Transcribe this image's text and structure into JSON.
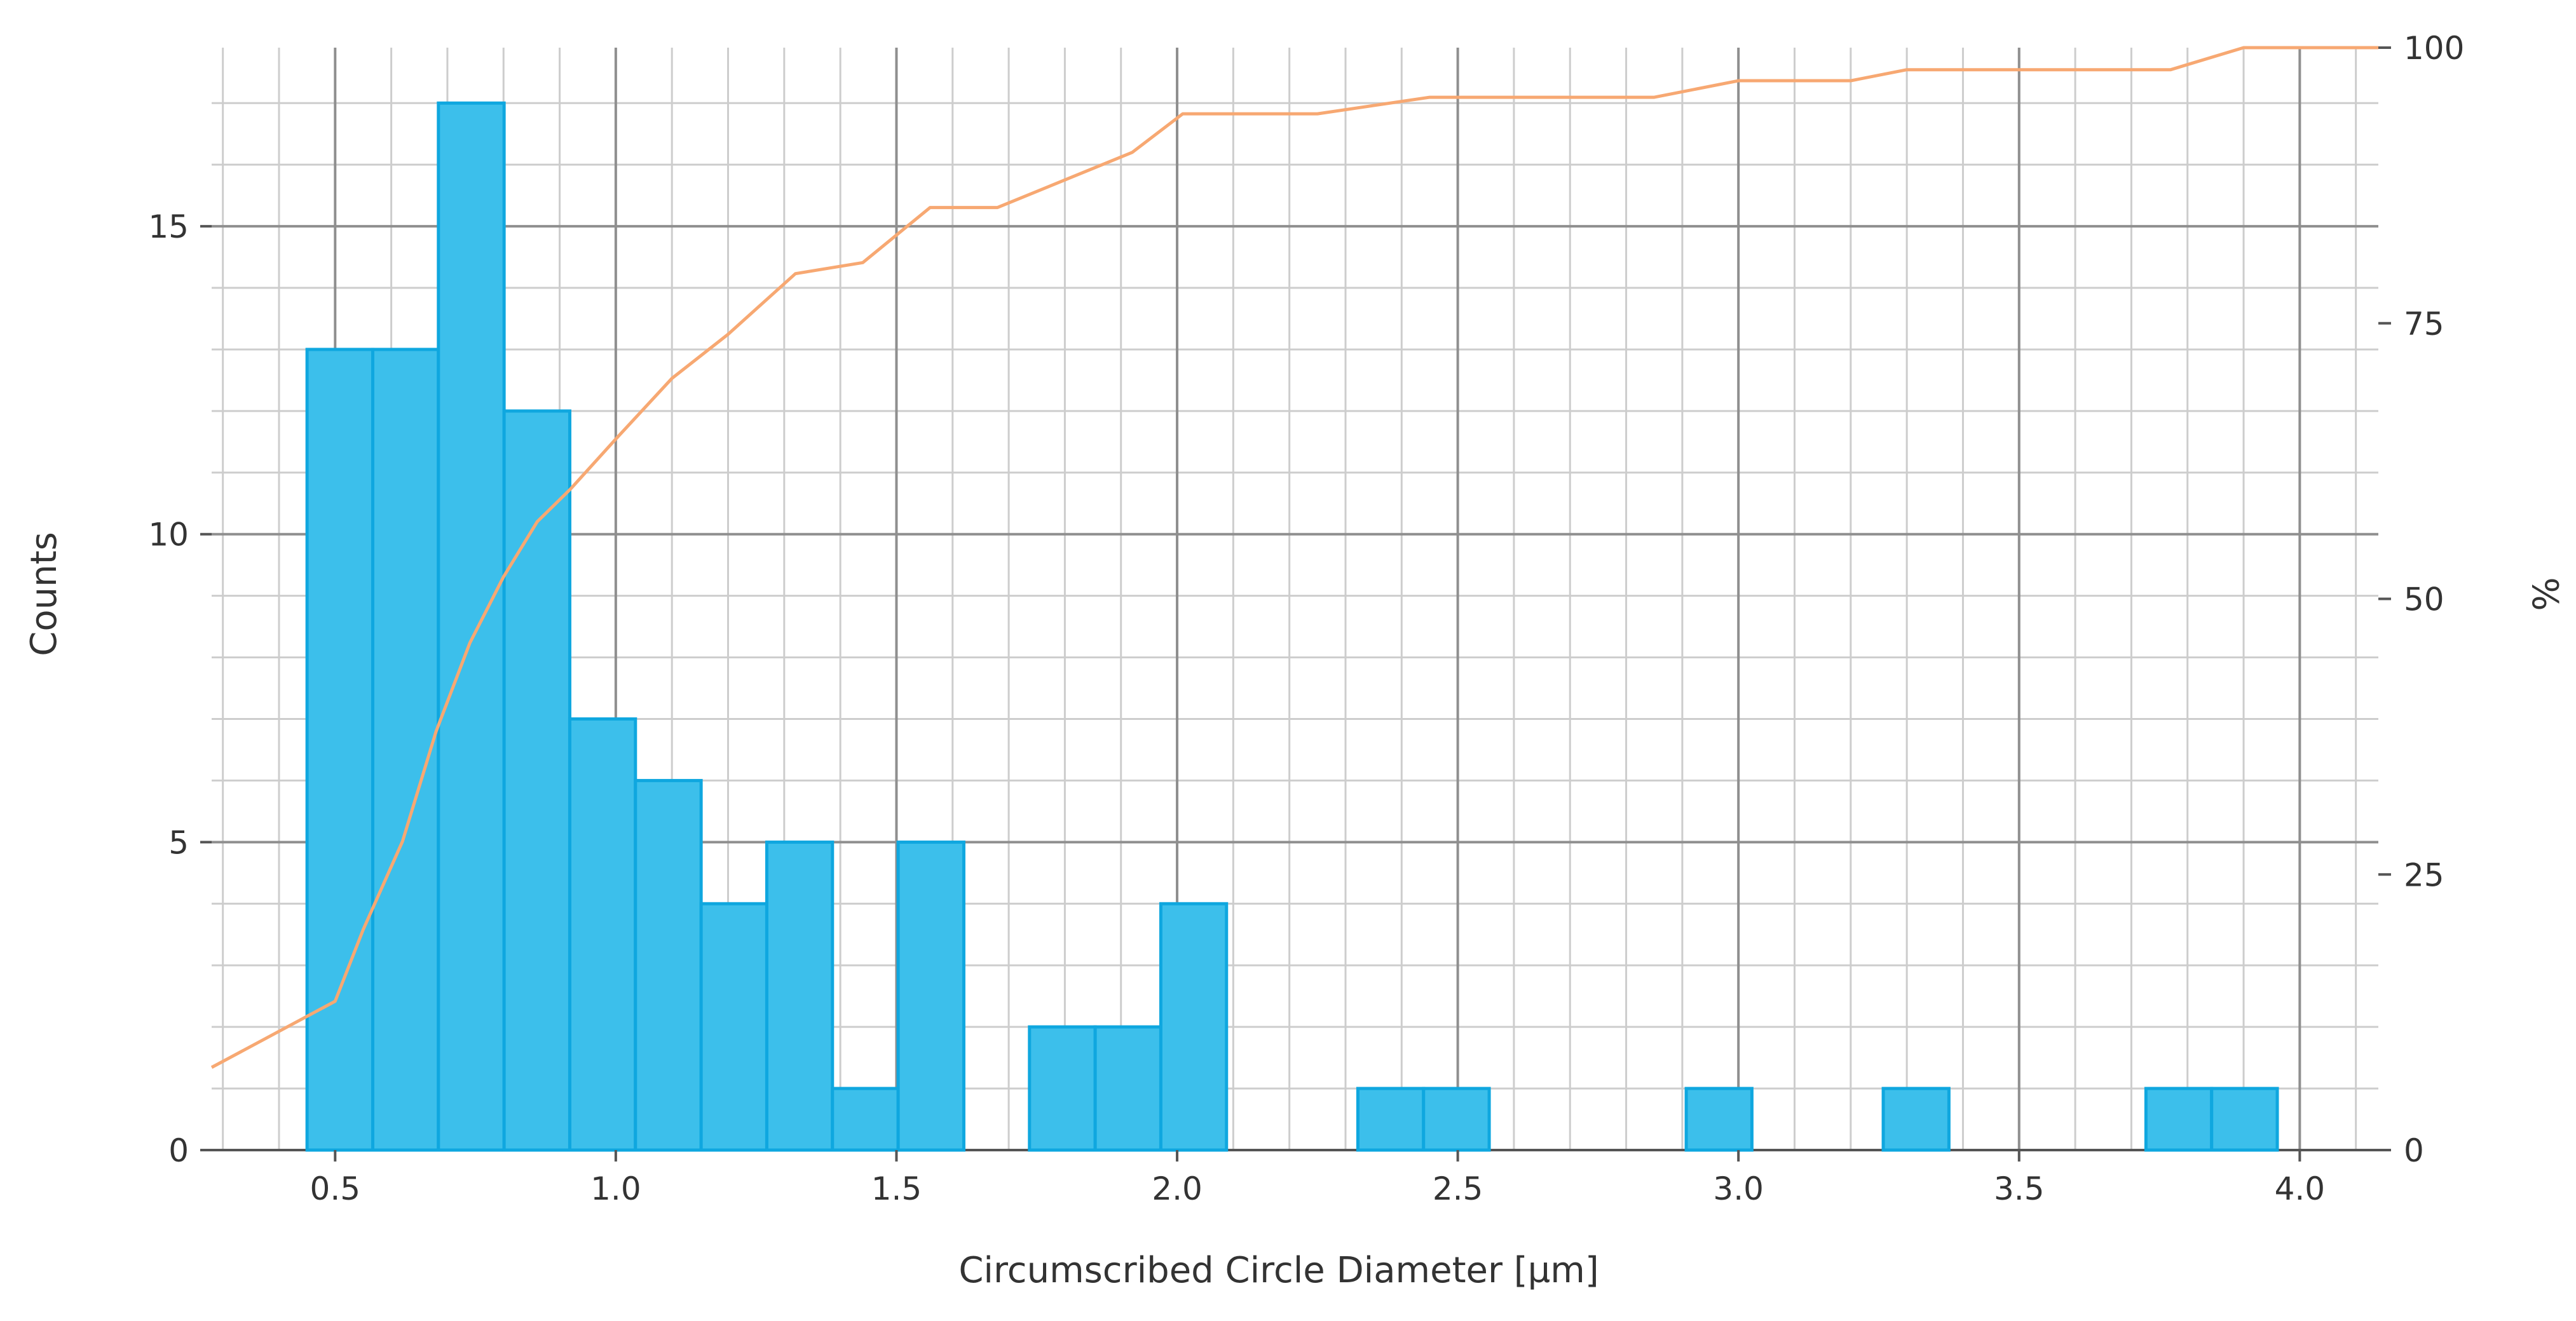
{
  "chart_data": {
    "type": "bar",
    "title": "",
    "xlabel": "Circumscribed Circle Diameter [µm]",
    "ylabel": "Counts",
    "y2label": "%",
    "xlim": [
      0.28,
      4.14
    ],
    "ylim": [
      0,
      17.9
    ],
    "y2lim": [
      0,
      100
    ],
    "x_ticks": [
      0.5,
      1.0,
      1.5,
      2.0,
      2.5,
      3.0,
      3.5,
      4.0
    ],
    "x_tick_labels": [
      "0.5",
      "1.0",
      "1.5",
      "2.0",
      "2.5",
      "3.0",
      "3.5",
      "4.0"
    ],
    "y_ticks": [
      0,
      5,
      10,
      15
    ],
    "y_tick_labels": [
      "0",
      "5",
      "10",
      "15"
    ],
    "y2_ticks": [
      0,
      25,
      50,
      75,
      100
    ],
    "y2_tick_labels": [
      "0",
      "25",
      "50",
      "75",
      "100"
    ],
    "grid": true,
    "bin_width": 0.117,
    "bars": [
      {
        "start": 0.45,
        "count": 13
      },
      {
        "start": 0.567,
        "count": 13
      },
      {
        "start": 0.684,
        "count": 17
      },
      {
        "start": 0.801,
        "count": 12
      },
      {
        "start": 0.918,
        "count": 7
      },
      {
        "start": 1.035,
        "count": 6
      },
      {
        "start": 1.152,
        "count": 4
      },
      {
        "start": 1.269,
        "count": 5
      },
      {
        "start": 1.386,
        "count": 1
      },
      {
        "start": 1.503,
        "count": 5
      },
      {
        "start": 1.737,
        "count": 2
      },
      {
        "start": 1.854,
        "count": 2
      },
      {
        "start": 1.971,
        "count": 4
      },
      {
        "start": 2.322,
        "count": 1
      },
      {
        "start": 2.439,
        "count": 1
      },
      {
        "start": 2.907,
        "count": 1
      },
      {
        "start": 3.258,
        "count": 1
      },
      {
        "start": 3.726,
        "count": 1
      },
      {
        "start": 3.843,
        "count": 1
      }
    ],
    "cumulative": {
      "x": [
        0.28,
        0.5,
        0.55,
        0.62,
        0.68,
        0.74,
        0.8,
        0.86,
        0.92,
        1.0,
        1.1,
        1.2,
        1.32,
        1.44,
        1.56,
        1.68,
        1.8,
        1.92,
        2.01,
        2.25,
        2.45,
        2.55,
        2.85,
        3.0,
        3.2,
        3.3,
        3.66,
        3.77,
        3.9,
        4.14
      ],
      "y": [
        7.5,
        13.5,
        20,
        28,
        38,
        46,
        52,
        57,
        60,
        64.5,
        70,
        74,
        79.5,
        80.5,
        85.5,
        85.5,
        88,
        90.5,
        94,
        94,
        95.5,
        95.5,
        95.5,
        97,
        97,
        98,
        98,
        98,
        100,
        100
      ]
    },
    "colors": {
      "bar_fill": "#3cbfeb",
      "bar_stroke": "#0fa7df",
      "line": "#f7a872",
      "grid_major": "#8f8f8f",
      "grid_minor": "#cdcdcd",
      "text": "#333333"
    }
  }
}
